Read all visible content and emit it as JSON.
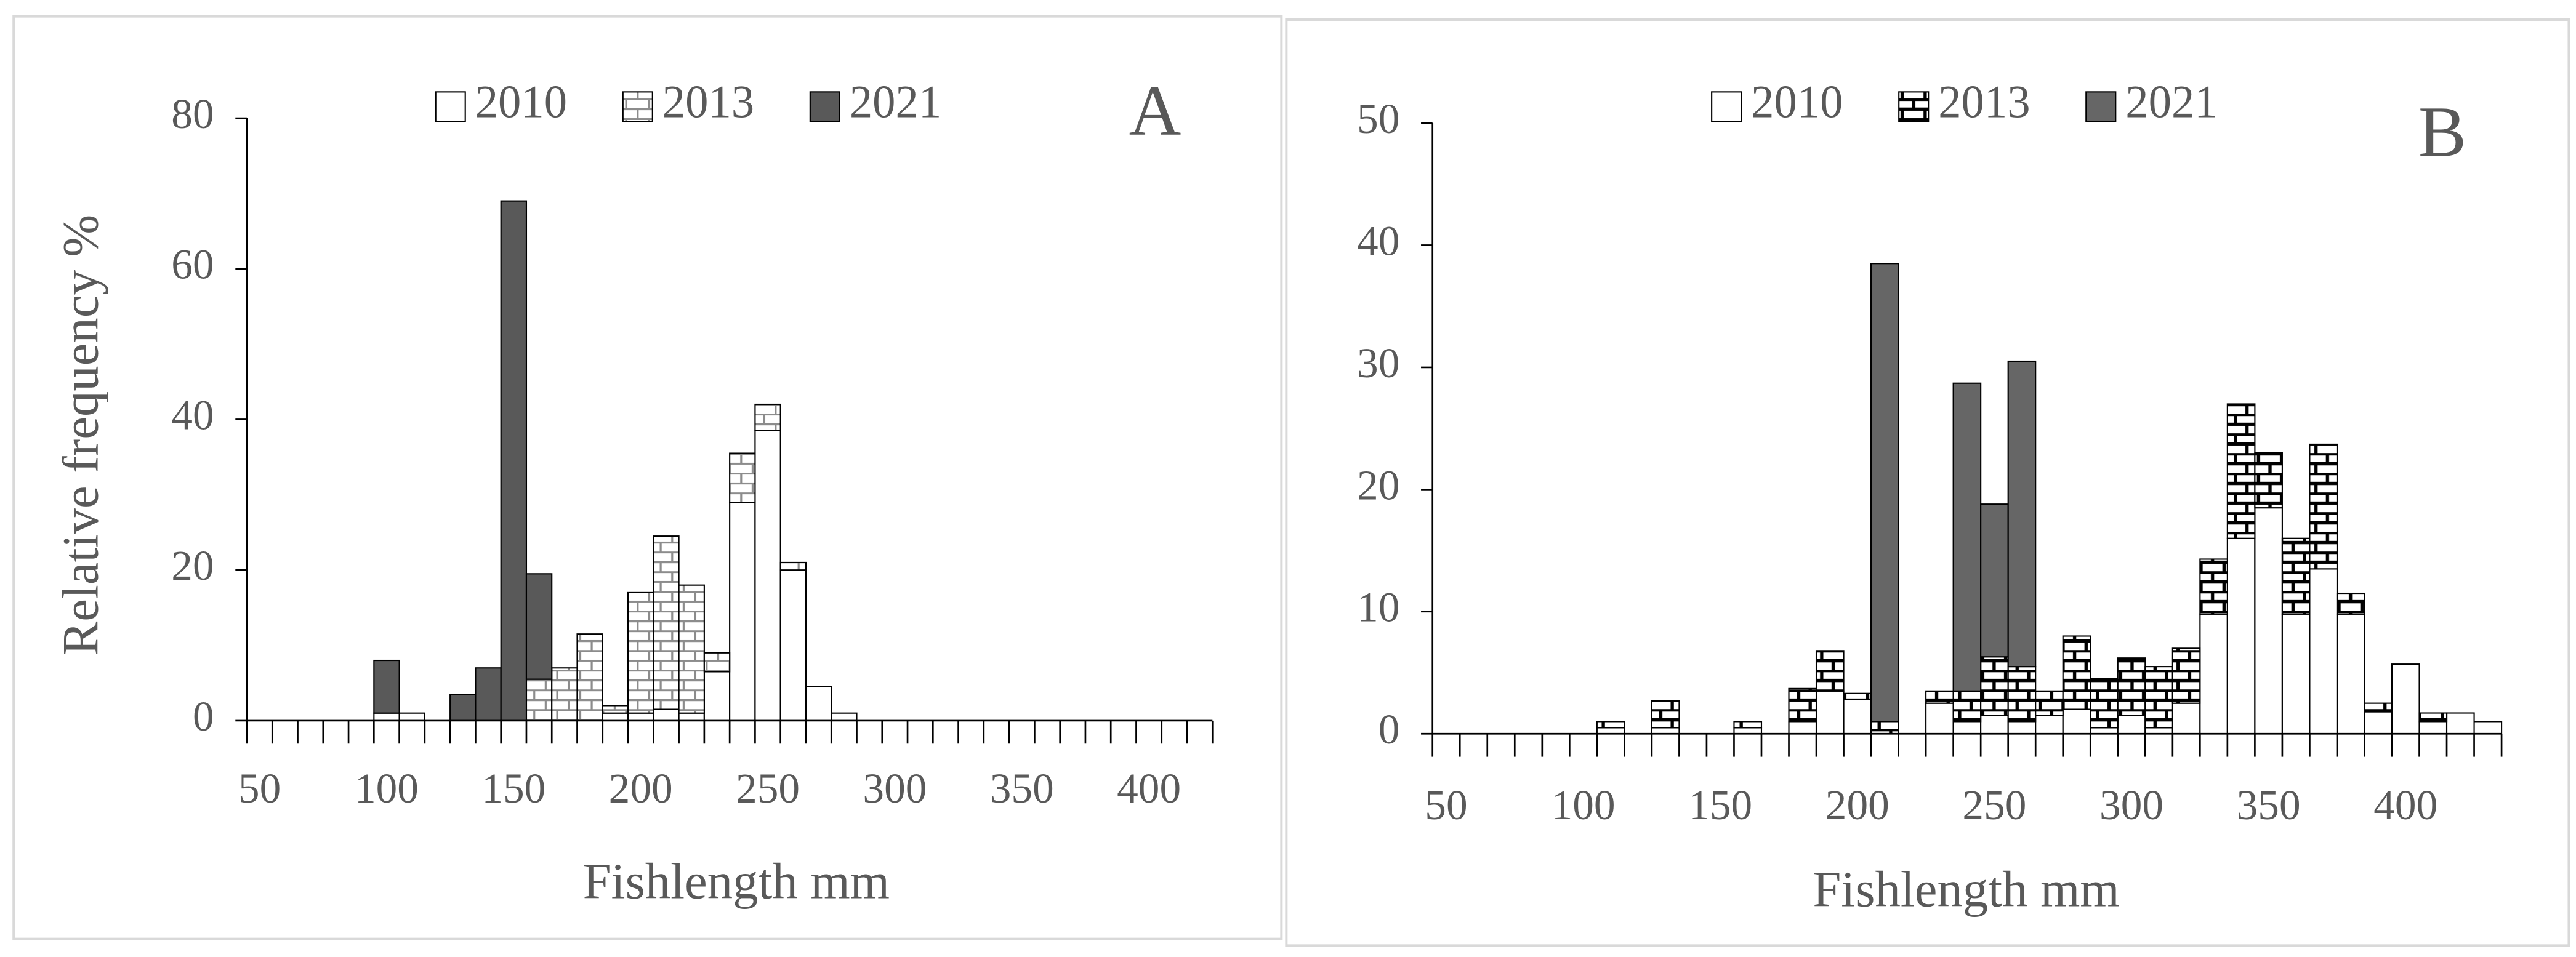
{
  "chart_data": [
    {
      "type": "histogram",
      "panel_label": "A",
      "x_label": "Fishlength mm",
      "y_label": "Relative frequency %",
      "bins": [
        45,
        55,
        65,
        75,
        85,
        95,
        105,
        115,
        125,
        135,
        145,
        155,
        165,
        175,
        185,
        195,
        205,
        215,
        225,
        235,
        245,
        255,
        265,
        275,
        285,
        295,
        305,
        315,
        325,
        335,
        345,
        355,
        365,
        375,
        385,
        395,
        405,
        415,
        425
      ],
      "xlim": [
        45,
        425
      ],
      "xticks": [
        50,
        100,
        150,
        200,
        250,
        300,
        350,
        400
      ],
      "ylim": [
        0,
        80
      ],
      "yticks": [
        0,
        20,
        40,
        60,
        80
      ],
      "series": [
        {
          "name": "2010",
          "color": "#ffffff",
          "values": [
            0,
            0,
            0,
            0,
            0,
            1,
            1,
            0,
            0,
            0,
            0,
            0,
            0,
            0,
            1,
            1,
            1.5,
            1,
            6.5,
            29,
            38.5,
            20,
            4.5,
            1,
            0,
            0,
            0,
            0,
            0,
            0,
            0,
            0,
            0,
            0,
            0,
            0,
            0,
            0
          ]
        },
        {
          "name": "2013",
          "color": "#8c8c8c",
          "pattern": "brick",
          "values": [
            0,
            0,
            0,
            0,
            0,
            0,
            0,
            0,
            0,
            0,
            0,
            5.5,
            7,
            11.5,
            1,
            16,
            23,
            17,
            2.5,
            6.5,
            3.5,
            1,
            0,
            0,
            0,
            0,
            0,
            0,
            0,
            0,
            0,
            0,
            0,
            0,
            0,
            0,
            0,
            0
          ]
        },
        {
          "name": "2021",
          "color": "#595959",
          "values": [
            0,
            0,
            0,
            0,
            0,
            7,
            0,
            0,
            3.5,
            7,
            69,
            14,
            0,
            0,
            0,
            0,
            0,
            0,
            0,
            0,
            0,
            0,
            0,
            0,
            0,
            0,
            0,
            0,
            0,
            0,
            0,
            0,
            0,
            0,
            0,
            0,
            0,
            0
          ]
        }
      ]
    },
    {
      "type": "histogram",
      "panel_label": "B",
      "x_label": "Fishlength mm",
      "bins": [
        45,
        55,
        65,
        75,
        85,
        95,
        105,
        115,
        125,
        135,
        145,
        155,
        165,
        175,
        185,
        195,
        205,
        215,
        225,
        235,
        245,
        255,
        265,
        275,
        285,
        295,
        305,
        315,
        325,
        335,
        345,
        355,
        365,
        375,
        385,
        395,
        405,
        415,
        425,
        435
      ],
      "xlim": [
        45,
        435
      ],
      "xticks": [
        50,
        100,
        150,
        200,
        250,
        300,
        350,
        400
      ],
      "ylim": [
        0,
        50
      ],
      "yticks": [
        0,
        10,
        20,
        30,
        40,
        50
      ],
      "series": [
        {
          "name": "2010",
          "color": "#ffffff",
          "values": [
            0,
            0,
            0,
            0,
            0,
            0,
            0.5,
            0,
            0.5,
            0,
            0,
            0.5,
            0,
            1,
            3.5,
            2.8,
            0,
            0,
            2.5,
            1,
            1.5,
            1,
            1.5,
            2,
            0.5,
            1.5,
            0.5,
            2.5,
            9.8,
            16,
            18.5,
            9.8,
            13.5,
            9.8,
            1.8,
            5.7,
            1,
            1.7,
            1
          ]
        },
        {
          "name": "2013",
          "color": "#000000",
          "pattern": "brick",
          "values": [
            0,
            0,
            0,
            0,
            0,
            0,
            0.5,
            0,
            2.2,
            0,
            0,
            0.5,
            0,
            2.7,
            3.3,
            0.5,
            1,
            0,
            1,
            2.5,
            4.8,
            4.5,
            2,
            6,
            4,
            4.7,
            5,
            4.5,
            4.5,
            11,
            4.5,
            6.2,
            10.2,
            1.7,
            0.7,
            0,
            0.7,
            0,
            0
          ]
        },
        {
          "name": "2021",
          "color": "#666666",
          "values": [
            0,
            0,
            0,
            0,
            0,
            0,
            0,
            0,
            0,
            0,
            0,
            0,
            0,
            0,
            0,
            0,
            37.5,
            0,
            0,
            25.2,
            12.5,
            25,
            0,
            0,
            0,
            0,
            0,
            0,
            0,
            0,
            0,
            0,
            0,
            0,
            0,
            0,
            0,
            0,
            0
          ]
        }
      ]
    }
  ]
}
